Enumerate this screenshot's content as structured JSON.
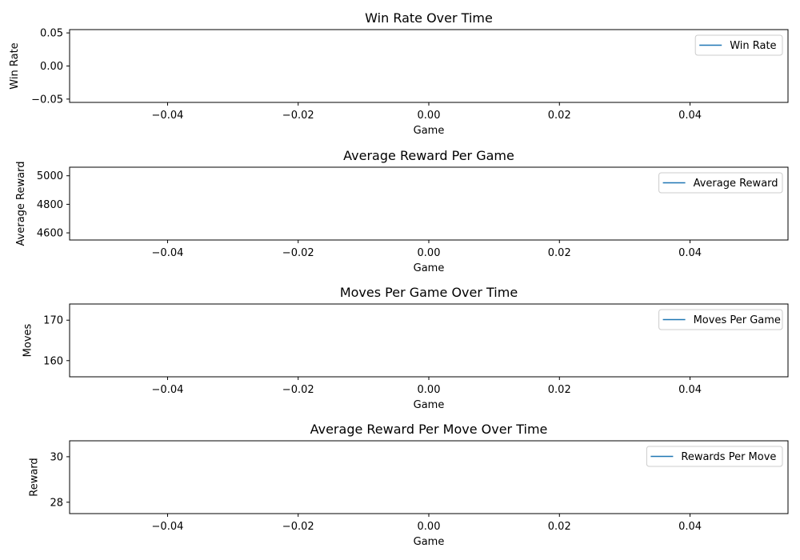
{
  "chart_data": [
    {
      "type": "line",
      "title": "Win Rate Over Time",
      "xlabel": "Game",
      "ylabel": "Win Rate",
      "xlim": [
        -0.055,
        0.055
      ],
      "ylim": [
        -0.055,
        0.055
      ],
      "xticks": [
        -0.04,
        -0.02,
        0.0,
        0.02,
        0.04
      ],
      "xtick_labels": [
        "−0.04",
        "−0.02",
        "0.00",
        "0.02",
        "0.04"
      ],
      "yticks": [
        -0.05,
        0.0,
        0.05
      ],
      "ytick_labels": [
        "−0.05",
        "0.00",
        "0.05"
      ],
      "series": [
        {
          "name": "Win Rate",
          "color": "#1f77b4",
          "x": [],
          "y": []
        }
      ],
      "legend": "top-right",
      "grid": false
    },
    {
      "type": "line",
      "title": "Average Reward Per Game",
      "xlabel": "Game",
      "ylabel": "Average Reward",
      "xlim": [
        -0.055,
        0.055
      ],
      "ylim": [
        4550,
        5060
      ],
      "xticks": [
        -0.04,
        -0.02,
        0.0,
        0.02,
        0.04
      ],
      "xtick_labels": [
        "−0.04",
        "−0.02",
        "0.00",
        "0.02",
        "0.04"
      ],
      "yticks": [
        4600,
        4800,
        5000
      ],
      "ytick_labels": [
        "4600",
        "4800",
        "5000"
      ],
      "series": [
        {
          "name": "Average Reward",
          "color": "#1f77b4",
          "x": [],
          "y": []
        }
      ],
      "legend": "top-right",
      "grid": false
    },
    {
      "type": "line",
      "title": "Moves Per Game Over Time",
      "xlabel": "Game",
      "ylabel": "Moves",
      "xlim": [
        -0.055,
        0.055
      ],
      "ylim": [
        156,
        174
      ],
      "xticks": [
        -0.04,
        -0.02,
        0.0,
        0.02,
        0.04
      ],
      "xtick_labels": [
        "−0.04",
        "−0.02",
        "0.00",
        "0.02",
        "0.04"
      ],
      "yticks": [
        160,
        170
      ],
      "ytick_labels": [
        "160",
        "170"
      ],
      "series": [
        {
          "name": "Moves Per Game",
          "color": "#1f77b4",
          "x": [],
          "y": []
        }
      ],
      "legend": "top-right",
      "grid": false
    },
    {
      "type": "line",
      "title": "Average Reward Per Move Over Time",
      "xlabel": "Game",
      "ylabel": "Reward",
      "xlim": [
        -0.055,
        0.055
      ],
      "ylim": [
        27.5,
        30.7
      ],
      "xticks": [
        -0.04,
        -0.02,
        0.0,
        0.02,
        0.04
      ],
      "xtick_labels": [
        "−0.04",
        "−0.02",
        "0.00",
        "0.02",
        "0.04"
      ],
      "yticks": [
        28,
        30
      ],
      "ytick_labels": [
        "28",
        "30"
      ],
      "series": [
        {
          "name": "Rewards Per Move",
          "color": "#1f77b4",
          "x": [],
          "y": []
        }
      ],
      "legend": "top-right",
      "grid": false
    }
  ]
}
